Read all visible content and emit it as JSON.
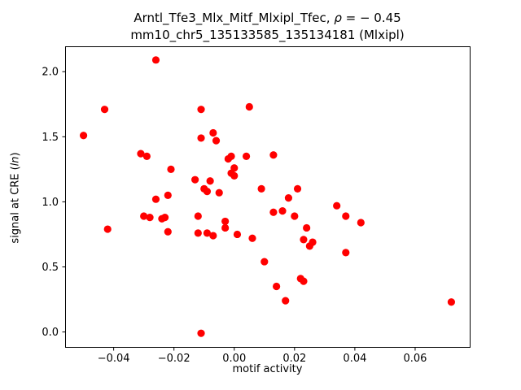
{
  "chart_data": {
    "type": "scatter",
    "title_prefix": "Arntl_Tfe3_Mlx_Mitf_Mlxipl_Tfec, ",
    "title_rho": "ρ",
    "title_suffix": " = − 0.45",
    "subtitle": "mm10_chr5_135133585_135134181 (Mlxipl)",
    "xlabel": "motif activity",
    "ylabel_prefix": "signal at CRE (",
    "ylabel_italic": "ln",
    "ylabel_suffix": ")",
    "marker_color": "#ff0000",
    "grid": false,
    "legend": "none",
    "xlim": [
      -0.0561,
      0.0781
    ],
    "ylim": [
      -0.115,
      2.195
    ],
    "x_ticks": {
      "values": [
        -0.04,
        -0.02,
        0.0,
        0.02,
        0.04,
        0.06
      ],
      "labels": [
        "−0.04",
        "−0.02",
        "0.00",
        "0.02",
        "0.04",
        "0.06"
      ]
    },
    "y_ticks": {
      "values": [
        0.0,
        0.5,
        1.0,
        1.5,
        2.0
      ],
      "labels": [
        "0.0",
        "0.5",
        "1.0",
        "1.5",
        "2.0"
      ]
    },
    "points": [
      [
        -0.05,
        1.51
      ],
      [
        -0.043,
        1.71
      ],
      [
        -0.042,
        0.79
      ],
      [
        -0.031,
        1.37
      ],
      [
        -0.03,
        0.89
      ],
      [
        -0.029,
        1.35
      ],
      [
        -0.028,
        0.88
      ],
      [
        -0.026,
        2.09
      ],
      [
        -0.026,
        1.02
      ],
      [
        -0.024,
        0.87
      ],
      [
        -0.023,
        0.88
      ],
      [
        -0.022,
        1.05
      ],
      [
        -0.022,
        0.77
      ],
      [
        -0.021,
        1.25
      ],
      [
        -0.013,
        1.17
      ],
      [
        -0.012,
        0.89
      ],
      [
        -0.012,
        0.76
      ],
      [
        -0.011,
        1.49
      ],
      [
        -0.011,
        1.71
      ],
      [
        -0.011,
        -0.01
      ],
      [
        -0.01,
        1.1
      ],
      [
        -0.009,
        1.08
      ],
      [
        -0.009,
        0.76
      ],
      [
        -0.008,
        1.16
      ],
      [
        -0.007,
        1.53
      ],
      [
        -0.007,
        0.74
      ],
      [
        -0.006,
        1.47
      ],
      [
        -0.005,
        1.07
      ],
      [
        -0.003,
        0.85
      ],
      [
        -0.003,
        0.8
      ],
      [
        -0.002,
        1.33
      ],
      [
        -0.001,
        1.35
      ],
      [
        -0.001,
        1.22
      ],
      [
        0.0,
        1.26
      ],
      [
        0.0,
        1.2
      ],
      [
        0.001,
        0.75
      ],
      [
        0.004,
        1.35
      ],
      [
        0.005,
        1.73
      ],
      [
        0.006,
        0.72
      ],
      [
        0.009,
        1.1
      ],
      [
        0.01,
        0.54
      ],
      [
        0.013,
        1.36
      ],
      [
        0.013,
        0.92
      ],
      [
        0.014,
        0.35
      ],
      [
        0.016,
        0.93
      ],
      [
        0.017,
        0.24
      ],
      [
        0.018,
        1.03
      ],
      [
        0.02,
        0.89
      ],
      [
        0.021,
        1.1
      ],
      [
        0.022,
        0.41
      ],
      [
        0.023,
        0.39
      ],
      [
        0.023,
        0.71
      ],
      [
        0.024,
        0.8
      ],
      [
        0.025,
        0.66
      ],
      [
        0.026,
        0.69
      ],
      [
        0.034,
        0.97
      ],
      [
        0.037,
        0.89
      ],
      [
        0.037,
        0.61
      ],
      [
        0.042,
        0.84
      ],
      [
        0.072,
        0.23
      ]
    ]
  }
}
